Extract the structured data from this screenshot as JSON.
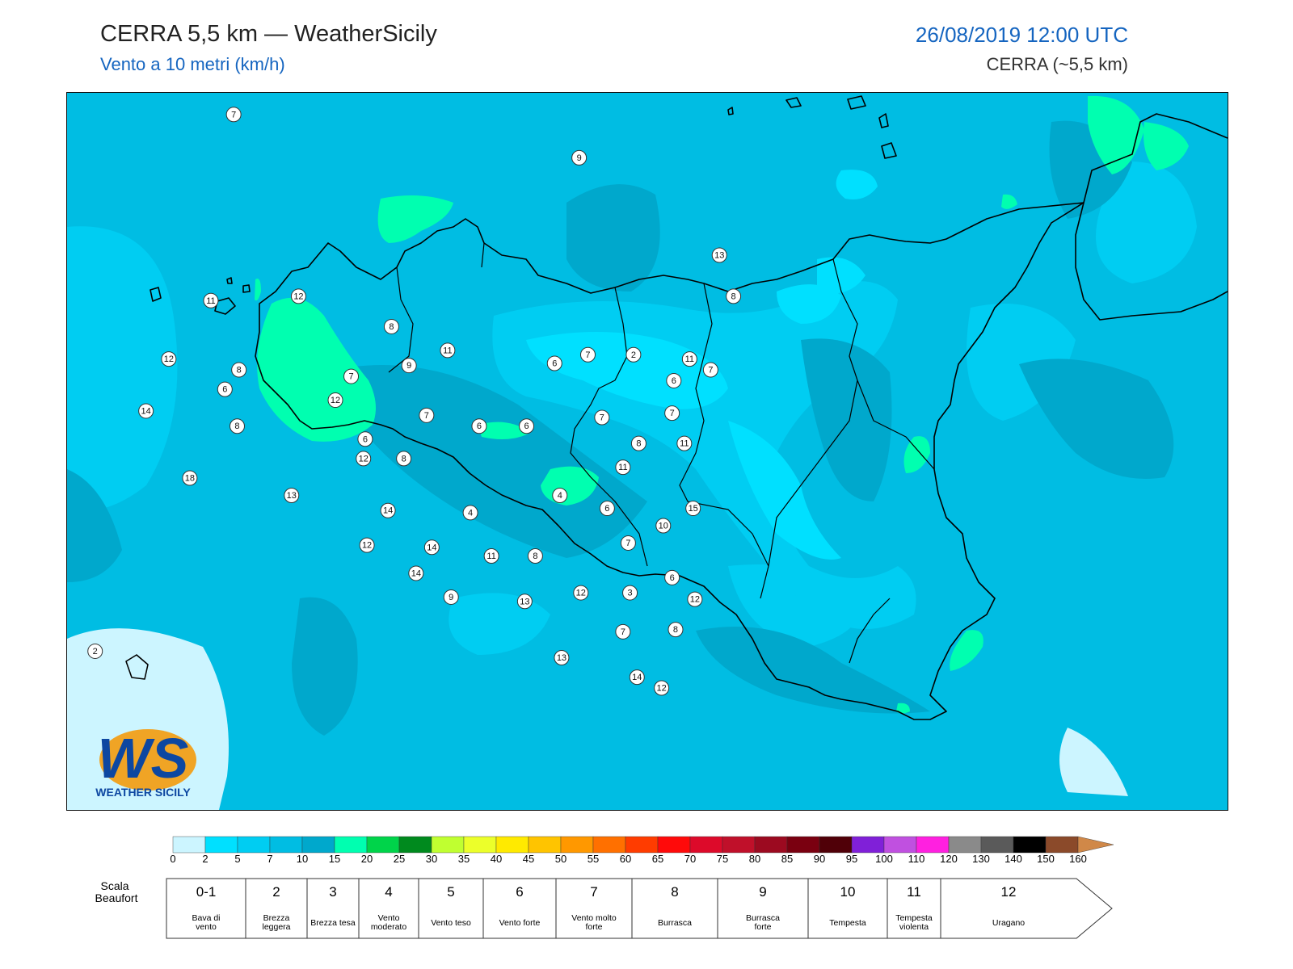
{
  "header": {
    "title": "CERRA 5,5 km — WeatherSicily",
    "subtitle": "Vento a 10 metri (km/h)",
    "datetime": "26/08/2019 12:00 UTC",
    "model": "CERRA (~5,5 km)"
  },
  "logo": {
    "letters": "WS",
    "text": "WEATHER SICILY"
  },
  "stations": [
    {
      "v": "7",
      "lon": 12.95,
      "lat": 38.85
    },
    {
      "v": "9",
      "lon": 14.92,
      "lat": 38.65
    },
    {
      "v": "13",
      "lon": 15.72,
      "lat": 38.2
    },
    {
      "v": "8",
      "lon": 15.8,
      "lat": 38.01
    },
    {
      "v": "11",
      "lon": 15.55,
      "lat": 37.72
    },
    {
      "v": "7",
      "lon": 15.45,
      "lat": 37.47
    },
    {
      "v": "11",
      "lon": 12.82,
      "lat": 37.99
    },
    {
      "v": "12",
      "lon": 13.32,
      "lat": 38.01
    },
    {
      "v": "8",
      "lon": 13.85,
      "lat": 37.87
    },
    {
      "v": "12",
      "lon": 12.58,
      "lat": 37.72
    },
    {
      "v": "8",
      "lon": 12.98,
      "lat": 37.67
    },
    {
      "v": "6",
      "lon": 12.9,
      "lat": 37.58
    },
    {
      "v": "14",
      "lon": 12.45,
      "lat": 37.48
    },
    {
      "v": "8",
      "lon": 12.97,
      "lat": 37.41
    },
    {
      "v": "18",
      "lon": 12.7,
      "lat": 37.17
    },
    {
      "v": "13",
      "lon": 13.28,
      "lat": 37.09
    },
    {
      "v": "12",
      "lon": 13.69,
      "lat": 37.26
    },
    {
      "v": "12",
      "lon": 13.53,
      "lat": 37.53
    },
    {
      "v": "7",
      "lon": 13.62,
      "lat": 37.64
    },
    {
      "v": "9",
      "lon": 13.95,
      "lat": 37.69
    },
    {
      "v": "11",
      "lon": 14.17,
      "lat": 37.76
    },
    {
      "v": "7",
      "lon": 14.05,
      "lat": 37.46
    },
    {
      "v": "6",
      "lon": 13.7,
      "lat": 37.35
    },
    {
      "v": "8",
      "lon": 13.92,
      "lat": 37.26
    },
    {
      "v": "14",
      "lon": 13.83,
      "lat": 37.02
    },
    {
      "v": "12",
      "lon": 13.71,
      "lat": 36.86
    },
    {
      "v": "14",
      "lon": 13.99,
      "lat": 36.73
    },
    {
      "v": "14",
      "lon": 14.08,
      "lat": 36.85
    },
    {
      "v": "6",
      "lon": 14.35,
      "lat": 37.41
    },
    {
      "v": "6",
      "lon": 14.62,
      "lat": 37.41
    },
    {
      "v": "6",
      "lon": 14.78,
      "lat": 37.7
    },
    {
      "v": "7",
      "lon": 14.97,
      "lat": 37.74
    },
    {
      "v": "2",
      "lon": 15.23,
      "lat": 37.74
    },
    {
      "v": "7",
      "lon": 15.05,
      "lat": 37.45
    },
    {
      "v": "6",
      "lon": 15.46,
      "lat": 37.62
    },
    {
      "v": "7",
      "lon": 15.67,
      "lat": 37.67
    },
    {
      "v": "8",
      "lon": 15.26,
      "lat": 37.33
    },
    {
      "v": "11",
      "lon": 15.52,
      "lat": 37.33
    },
    {
      "v": "11",
      "lon": 15.17,
      "lat": 37.22
    },
    {
      "v": "4",
      "lon": 14.81,
      "lat": 37.09
    },
    {
      "v": "4",
      "lon": 14.3,
      "lat": 37.01
    },
    {
      "v": "6",
      "lon": 15.08,
      "lat": 37.03
    },
    {
      "v": "15",
      "lon": 15.57,
      "lat": 37.03
    },
    {
      "v": "10",
      "lon": 15.4,
      "lat": 36.95
    },
    {
      "v": "7",
      "lon": 15.2,
      "lat": 36.87
    },
    {
      "v": "11",
      "lon": 14.42,
      "lat": 36.81
    },
    {
      "v": "8",
      "lon": 14.67,
      "lat": 36.81
    },
    {
      "v": "6",
      "lon": 15.45,
      "lat": 36.71
    },
    {
      "v": "12",
      "lon": 14.93,
      "lat": 36.64
    },
    {
      "v": "3",
      "lon": 15.21,
      "lat": 36.64
    },
    {
      "v": "12",
      "lon": 15.58,
      "lat": 36.61
    },
    {
      "v": "9",
      "lon": 14.19,
      "lat": 36.62
    },
    {
      "v": "13",
      "lon": 14.61,
      "lat": 36.6
    },
    {
      "v": "7",
      "lon": 15.17,
      "lat": 36.46
    },
    {
      "v": "8",
      "lon": 15.47,
      "lat": 36.47
    },
    {
      "v": "13",
      "lon": 14.82,
      "lat": 36.34
    },
    {
      "v": "14",
      "lon": 15.25,
      "lat": 36.25
    },
    {
      "v": "12",
      "lon": 15.39,
      "lat": 36.2
    },
    {
      "v": "2",
      "lon": 12.16,
      "lat": 36.37
    }
  ],
  "colorbar": {
    "ticks": [
      "0",
      "2",
      "5",
      "7",
      "10",
      "15",
      "20",
      "25",
      "30",
      "35",
      "40",
      "45",
      "50",
      "55",
      "60",
      "65",
      "70",
      "75",
      "80",
      "85",
      "90",
      "95",
      "100",
      "110",
      "120",
      "130",
      "140",
      "150",
      "160"
    ],
    "colors": [
      "#ccf5ff",
      "#00e0ff",
      "#00cdf2",
      "#00bde3",
      "#00a8cc",
      "#00ffb0",
      "#00d44a",
      "#008a1e",
      "#c0ff30",
      "#ecff2a",
      "#ffea00",
      "#ffc400",
      "#ff9800",
      "#ff7000",
      "#ff3c00",
      "#ff0a0a",
      "#dd0a2a",
      "#c0102a",
      "#9c0a20",
      "#7a0010",
      "#500008",
      "#8020d8",
      "#c050e0",
      "#ff20e0",
      "#8a8a8a",
      "#5a5a5a",
      "#000000",
      "#8b4a2a",
      "#d08848"
    ]
  },
  "beaufort": {
    "title": "Scala Beaufort",
    "classes": [
      {
        "num": "0-1",
        "desc": "Bava di vento"
      },
      {
        "num": "2",
        "desc": "Brezza leggera"
      },
      {
        "num": "3",
        "desc": "Brezza tesa"
      },
      {
        "num": "4",
        "desc": "Vento moderato"
      },
      {
        "num": "5",
        "desc": "Vento teso"
      },
      {
        "num": "6",
        "desc": "Vento forte"
      },
      {
        "num": "7",
        "desc": "Vento molto forte"
      },
      {
        "num": "8",
        "desc": "Burrasca"
      },
      {
        "num": "9",
        "desc": "Burrasca forte"
      },
      {
        "num": "10",
        "desc": "Tempesta"
      },
      {
        "num": "11",
        "desc": "Tempesta violenta"
      },
      {
        "num": "12",
        "desc": "Uragano"
      }
    ]
  },
  "palette": {
    "c0": "#ccf5ff",
    "c2": "#00e0ff",
    "c5": "#00cdf2",
    "c7": "#00bde3",
    "c10": "#00a8cc",
    "c15": "#00ffb0",
    "coast": "#000000"
  }
}
